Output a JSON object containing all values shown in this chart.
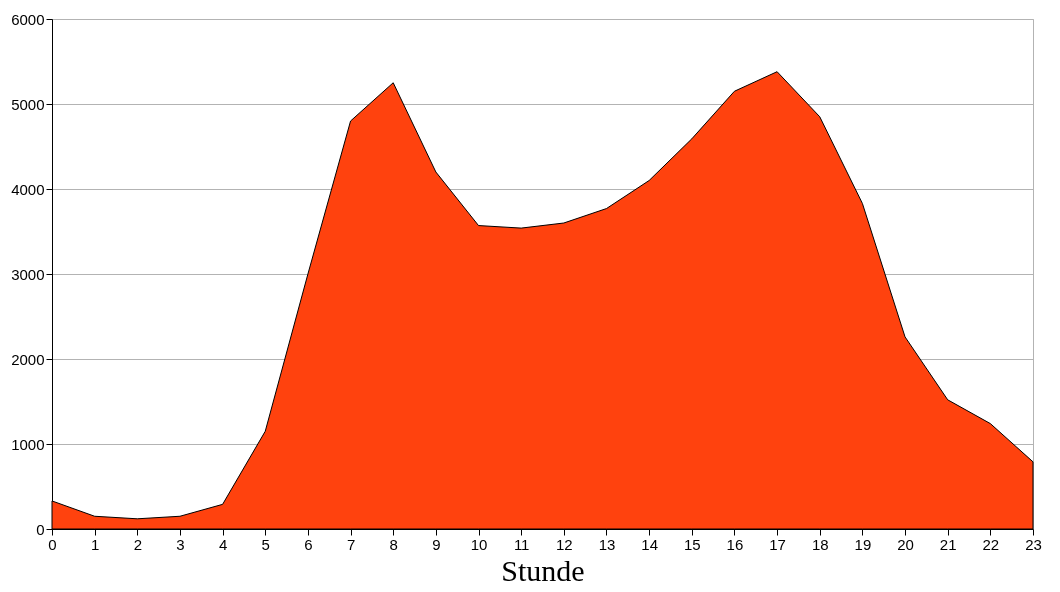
{
  "chart_data": {
    "type": "area",
    "xlabel": "Stunde",
    "x": [
      0,
      1,
      2,
      3,
      4,
      5,
      6,
      7,
      8,
      9,
      10,
      11,
      12,
      13,
      14,
      15,
      16,
      17,
      18,
      19,
      20,
      21,
      22,
      23
    ],
    "series": [
      {
        "color": "#ff420e",
        "values": [
          330,
          150,
          120,
          150,
          290,
          1150,
          3000,
          4800,
          5250,
          4200,
          3570,
          3540,
          3600,
          3770,
          4100,
          4590,
          5150,
          5380,
          4850,
          3830,
          2260,
          1520,
          1240,
          790
        ]
      }
    ],
    "xlim": [
      0,
      23
    ],
    "xticks": [
      0,
      1,
      2,
      3,
      4,
      5,
      6,
      7,
      8,
      9,
      10,
      11,
      12,
      13,
      14,
      15,
      16,
      17,
      18,
      19,
      20,
      21,
      22,
      23
    ],
    "ylim": [
      0,
      6000
    ],
    "yticks": [
      0,
      1000,
      2000,
      3000,
      4000,
      5000,
      6000
    ],
    "grid": "y"
  }
}
